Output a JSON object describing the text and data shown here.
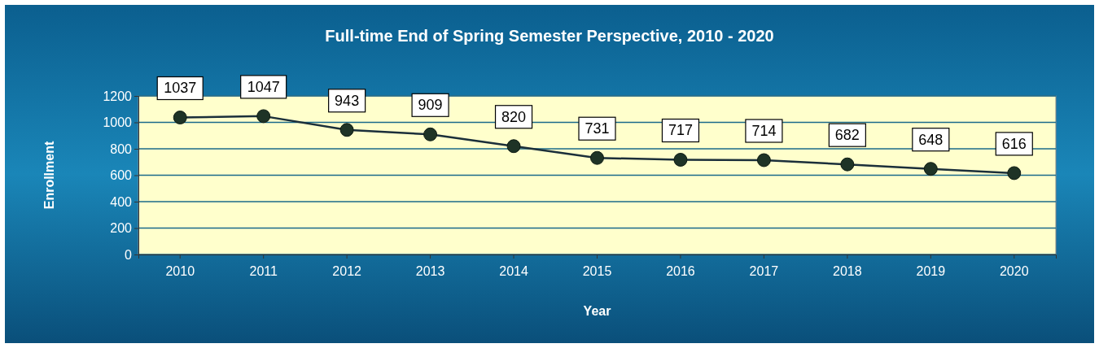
{
  "chart_data": {
    "type": "line",
    "title": "Full-time End of Spring Semester Perspective, 2010 - 2020",
    "xlabel": "Year",
    "ylabel": "Enrollment",
    "categories": [
      "2010",
      "2011",
      "2012",
      "2013",
      "2014",
      "2015",
      "2016",
      "2017",
      "2018",
      "2019",
      "2020"
    ],
    "series": [
      {
        "color": "#1b2f3a",
        "values": [
          1037,
          1047,
          943,
          909,
          820,
          731,
          717,
          714,
          682,
          648,
          616
        ]
      }
    ],
    "ylim": [
      0,
      1200
    ],
    "yticks": [
      0,
      200,
      400,
      600,
      800,
      1000,
      1200
    ],
    "grid": "y",
    "marker": "circle",
    "line_style": "solid",
    "data_labels": true
  }
}
